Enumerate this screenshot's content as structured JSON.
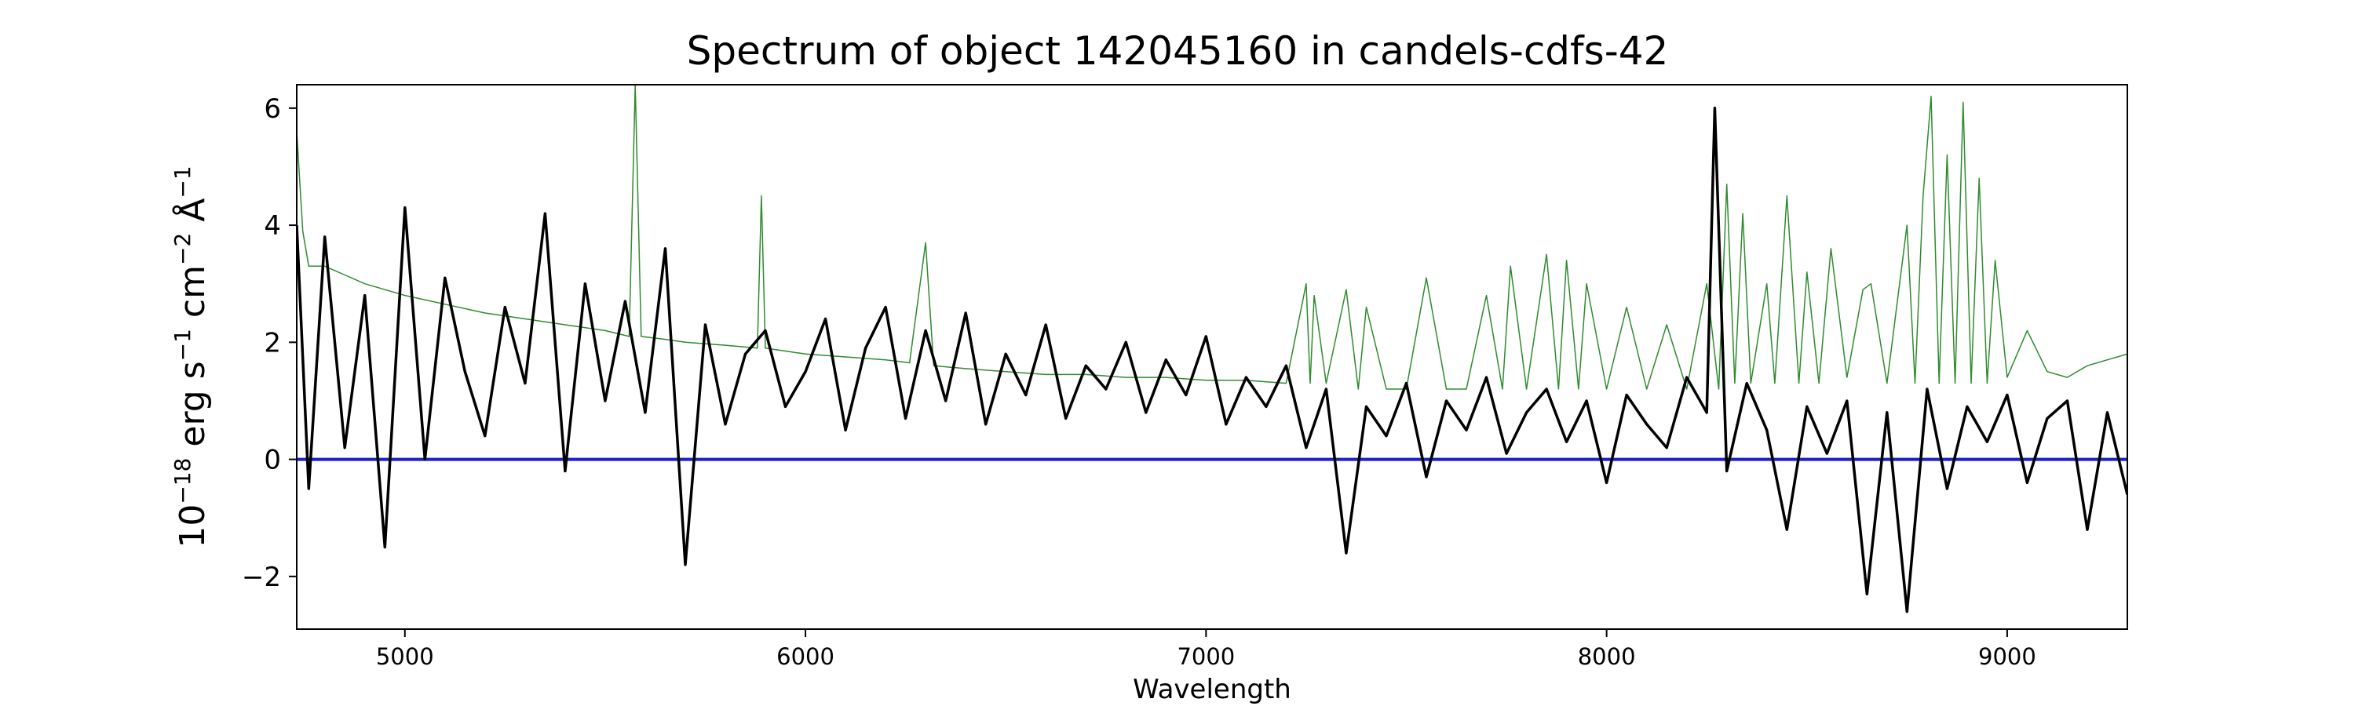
{
  "chart_data": {
    "type": "line",
    "title": "Spectrum of object 142045160 in candels-cdfs-42",
    "xlabel": "Wavelength",
    "ylabel": {
      "base": "10",
      "exponent": "−18",
      "unit_erg": "erg s",
      "exp_s": "−1",
      "unit_cm": "cm",
      "exp_cm": "−2",
      "unit_angstrom": "Å",
      "exp_angstrom": "−1"
    },
    "xlim": [
      4730,
      9300
    ],
    "ylim": [
      -2.9,
      6.4
    ],
    "xticks": [
      5000,
      6000,
      7000,
      8000,
      9000
    ],
    "xtick_labels": [
      "5000",
      "6000",
      "7000",
      "8000",
      "9000"
    ],
    "yticks": [
      -2,
      0,
      2,
      4,
      6
    ],
    "ytick_labels": [
      "−2",
      "0",
      "2",
      "4",
      "6"
    ],
    "grid": false,
    "legend": "none",
    "series": [
      {
        "role": "flux",
        "color": "#000000",
        "x": [
          4730,
          4760,
          4800,
          4850,
          4900,
          4950,
          5000,
          5050,
          5100,
          5150,
          5200,
          5250,
          5300,
          5350,
          5400,
          5450,
          5500,
          5550,
          5600,
          5650,
          5700,
          5750,
          5800,
          5850,
          5900,
          5950,
          6000,
          6050,
          6100,
          6150,
          6200,
          6250,
          6300,
          6350,
          6400,
          6450,
          6500,
          6550,
          6600,
          6650,
          6700,
          6750,
          6800,
          6850,
          6900,
          6950,
          7000,
          7050,
          7100,
          7150,
          7200,
          7250,
          7300,
          7350,
          7400,
          7450,
          7500,
          7550,
          7600,
          7650,
          7700,
          7750,
          7800,
          7850,
          7900,
          7950,
          8000,
          8050,
          8100,
          8150,
          8200,
          8250,
          8270,
          8300,
          8350,
          8400,
          8450,
          8500,
          8550,
          8600,
          8650,
          8700,
          8750,
          8800,
          8850,
          8900,
          8950,
          9000,
          9050,
          9100,
          9150,
          9200,
          9250,
          9300
        ],
        "y": [
          4.0,
          -0.5,
          3.8,
          0.2,
          2.8,
          -1.5,
          4.3,
          0.0,
          3.1,
          1.5,
          0.4,
          2.6,
          1.3,
          4.2,
          -0.2,
          3.0,
          1.0,
          2.7,
          0.8,
          3.6,
          -1.8,
          2.3,
          0.6,
          1.8,
          2.2,
          0.9,
          1.5,
          2.4,
          0.5,
          1.9,
          2.6,
          0.7,
          2.2,
          1.0,
          2.5,
          0.6,
          1.8,
          1.1,
          2.3,
          0.7,
          1.6,
          1.2,
          2.0,
          0.8,
          1.7,
          1.1,
          2.1,
          0.6,
          1.4,
          0.9,
          1.6,
          0.2,
          1.2,
          -1.6,
          0.9,
          0.4,
          1.3,
          -0.3,
          1.0,
          0.5,
          1.4,
          0.1,
          0.8,
          1.2,
          0.3,
          1.0,
          -0.4,
          1.1,
          0.6,
          0.2,
          1.4,
          0.8,
          6.0,
          -0.2,
          1.3,
          0.5,
          -1.2,
          0.9,
          0.1,
          1.0,
          -2.3,
          0.8,
          -2.6,
          1.2,
          -0.5,
          0.9,
          0.3,
          1.1,
          -0.4,
          0.7,
          1.0,
          -1.2,
          0.8,
          -0.6
        ],
        "width": 3.5
      },
      {
        "role": "model",
        "color": "#2e8b2e",
        "x": [
          4730,
          4745,
          4760,
          4800,
          4850,
          4900,
          4950,
          5000,
          5100,
          5200,
          5300,
          5400,
          5500,
          5560,
          5575,
          5590,
          5650,
          5700,
          5800,
          5880,
          5890,
          5900,
          5950,
          6000,
          6100,
          6200,
          6260,
          6300,
          6320,
          6400,
          6500,
          6600,
          6700,
          6800,
          6900,
          7000,
          7100,
          7200,
          7250,
          7260,
          7270,
          7300,
          7350,
          7380,
          7400,
          7450,
          7500,
          7550,
          7600,
          7650,
          7700,
          7740,
          7760,
          7800,
          7850,
          7880,
          7900,
          7930,
          7950,
          8000,
          8050,
          8100,
          8150,
          8200,
          8250,
          8280,
          8300,
          8320,
          8340,
          8360,
          8400,
          8420,
          8450,
          8480,
          8500,
          8530,
          8560,
          8600,
          8640,
          8660,
          8700,
          8750,
          8770,
          8790,
          8810,
          8830,
          8850,
          8870,
          8890,
          8910,
          8930,
          8950,
          8970,
          9000,
          9050,
          9100,
          9150,
          9200,
          9250,
          9300
        ],
        "y": [
          5.6,
          3.9,
          3.3,
          3.3,
          3.15,
          3.0,
          2.9,
          2.8,
          2.65,
          2.5,
          2.4,
          2.3,
          2.2,
          2.1,
          6.4,
          2.1,
          2.05,
          2.0,
          1.95,
          1.9,
          4.5,
          1.9,
          1.85,
          1.8,
          1.75,
          1.7,
          1.65,
          3.7,
          1.6,
          1.55,
          1.5,
          1.45,
          1.45,
          1.4,
          1.4,
          1.35,
          1.35,
          1.3,
          3.0,
          1.3,
          2.8,
          1.3,
          2.9,
          1.2,
          2.6,
          1.2,
          1.2,
          3.1,
          1.2,
          1.2,
          2.8,
          1.2,
          3.3,
          1.2,
          3.5,
          1.2,
          3.4,
          1.2,
          3.0,
          1.2,
          2.6,
          1.2,
          2.3,
          1.2,
          3.0,
          1.2,
          4.7,
          1.3,
          4.2,
          1.3,
          3.0,
          1.3,
          4.5,
          1.3,
          3.2,
          1.3,
          3.6,
          1.4,
          2.9,
          3.0,
          1.3,
          4.0,
          1.3,
          4.5,
          6.2,
          1.3,
          5.2,
          1.3,
          6.1,
          1.3,
          4.8,
          1.3,
          3.4,
          1.4,
          2.2,
          1.5,
          1.4,
          1.6,
          1.7,
          1.8
        ],
        "width": 1.5
      },
      {
        "role": "zero",
        "color": "#1f1fcc",
        "x": [
          4730,
          9300
        ],
        "y": [
          0,
          0
        ],
        "width": 4
      }
    ]
  }
}
